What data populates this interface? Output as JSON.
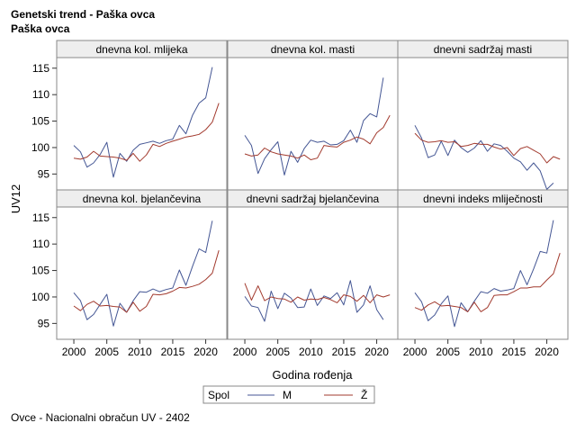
{
  "titles": [
    "Genetski trend - Paška ovca",
    "Paška ovca"
  ],
  "footer": "Ovce - Nacionalni obračun UV - 2402",
  "colors": {
    "M": "#445694",
    "Z": "#A23A2E",
    "frame": "#888888",
    "panel_header": "#EEEEEE",
    "grid": "#E4E4E4"
  },
  "chart_data": {
    "type": "line",
    "xlabel": "Godina rođenja",
    "ylabel": "UV12",
    "xticks": [
      2000,
      2005,
      2010,
      2015,
      2020
    ],
    "yticks": [
      95,
      100,
      105,
      110,
      115
    ],
    "xlim": [
      1997.4,
      2023.2
    ],
    "ylim": [
      92,
      117
    ],
    "legend": {
      "title": "Spol",
      "position": "bottom",
      "entries": [
        "M",
        "Ž"
      ]
    },
    "x": [
      2000,
      2001,
      2002,
      2003,
      2004,
      2005,
      2006,
      2007,
      2008,
      2009,
      2010,
      2011,
      2012,
      2013,
      2014,
      2015,
      2016,
      2017,
      2018,
      2019,
      2020,
      2021,
      2022
    ],
    "panels": [
      {
        "title": "dnevna kol. mlijeka",
        "series": [
          {
            "name": "M",
            "values": [
              100.4,
              99.2,
              96.3,
              97.1,
              98.7,
              101.0,
              94.4,
              98.9,
              97.4,
              99.5,
              100.6,
              100.9,
              101.2,
              100.8,
              101.3,
              101.6,
              104.2,
              102.6,
              106.1,
              108.4,
              109.4,
              115.2,
              null
            ]
          },
          {
            "name": "Ž",
            "values": [
              98.0,
              97.8,
              98.2,
              99.3,
              98.4,
              98.3,
              98.2,
              98.0,
              97.6,
              98.9,
              97.4,
              98.6,
              100.6,
              100.2,
              100.8,
              101.2,
              101.6,
              102.0,
              102.2,
              102.5,
              103.4,
              104.8,
              108.4
            ]
          }
        ]
      },
      {
        "title": "dnevna kol. masti",
        "series": [
          {
            "name": "M",
            "values": [
              102.3,
              100.4,
              95.1,
              97.9,
              99.6,
              101.1,
              94.8,
              99.3,
              97.2,
              99.8,
              101.4,
              101.0,
              101.2,
              100.5,
              100.6,
              101.3,
              103.3,
              101.0,
              105.1,
              106.4,
              105.8,
              113.2,
              null
            ]
          },
          {
            "name": "Ž",
            "values": [
              98.8,
              98.4,
              98.6,
              99.9,
              99.2,
              98.8,
              98.6,
              98.4,
              98.0,
              98.6,
              97.7,
              98.0,
              100.4,
              100.2,
              100.1,
              101.0,
              101.4,
              102.0,
              101.6,
              100.7,
              102.8,
              103.8,
              106.1
            ]
          }
        ]
      },
      {
        "title": "dnevni sadržaj masti",
        "series": [
          {
            "name": "M",
            "values": [
              104.2,
              101.8,
              98.1,
              98.6,
              101.2,
              98.5,
              101.4,
              100.0,
              99.1,
              99.9,
              101.3,
              99.3,
              100.7,
              100.4,
              99.3,
              98.0,
              97.3,
              95.7,
              97.1,
              95.6,
              92.1,
              93.3,
              null
            ]
          },
          {
            "name": "Ž",
            "values": [
              102.7,
              101.4,
              101.0,
              101.1,
              101.3,
              101.0,
              101.1,
              100.2,
              100.4,
              100.8,
              100.6,
              100.6,
              100.1,
              99.7,
              100.0,
              98.5,
              99.8,
              100.2,
              99.5,
              98.8,
              97.1,
              98.3,
              97.8
            ]
          }
        ]
      },
      {
        "title": "dnevna kol. bjelančevina",
        "series": [
          {
            "name": "M",
            "values": [
              100.8,
              99.3,
              95.7,
              96.7,
              98.6,
              100.5,
              94.5,
              98.8,
              97.1,
              99.3,
              101.0,
              100.9,
              101.5,
              101.0,
              101.4,
              101.7,
              105.1,
              102.2,
              105.8,
              109.1,
              108.4,
              114.4,
              null
            ]
          },
          {
            "name": "Ž",
            "values": [
              98.3,
              97.4,
              98.6,
              99.2,
              98.3,
              98.4,
              98.2,
              98.1,
              97.1,
              99.0,
              97.3,
              98.2,
              100.5,
              100.4,
              100.6,
              101.1,
              101.8,
              101.7,
              102.0,
              102.4,
              103.3,
              104.5,
              108.8
            ]
          }
        ]
      },
      {
        "title": "dnevni sadržaj bjelančevina",
        "series": [
          {
            "name": "M",
            "values": [
              100.1,
              98.3,
              98.0,
              95.4,
              101.1,
              97.8,
              100.7,
              99.8,
              98.0,
              98.1,
              101.5,
              98.4,
              100.2,
              99.7,
              100.8,
              98.5,
              103.1,
              97.1,
              98.5,
              102.1,
              97.6,
              95.7,
              null
            ]
          },
          {
            "name": "Ž",
            "values": [
              102.6,
              99.4,
              102.1,
              99.3,
              100.0,
              99.7,
              99.6,
              99.0,
              100.0,
              99.4,
              99.6,
              99.5,
              99.9,
              99.5,
              98.9,
              100.4,
              100.1,
              99.2,
              100.3,
              98.9,
              100.4,
              100.0,
              100.4
            ]
          }
        ]
      },
      {
        "title": "dnevni indeks mliječnosti",
        "series": [
          {
            "name": "M",
            "values": [
              100.8,
              99.1,
              95.5,
              96.6,
              98.7,
              100.2,
              94.4,
              98.9,
              97.2,
              99.2,
              101.0,
              100.7,
              101.6,
              101.1,
              101.3,
              101.6,
              105.0,
              102.3,
              105.3,
              108.6,
              108.3,
              114.5,
              null
            ]
          },
          {
            "name": "Ž",
            "values": [
              98.0,
              97.5,
              98.5,
              99.1,
              98.3,
              98.4,
              98.2,
              98.0,
              97.2,
              99.0,
              97.2,
              98.0,
              100.3,
              100.4,
              100.4,
              101.0,
              101.7,
              101.7,
              101.9,
              101.9,
              103.2,
              104.4,
              108.3
            ]
          }
        ]
      }
    ]
  }
}
